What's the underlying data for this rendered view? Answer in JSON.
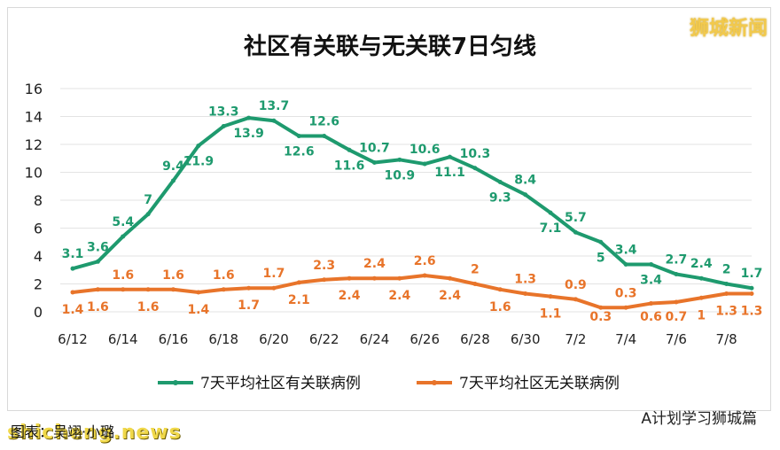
{
  "brand": "狮城新闻",
  "footer_left": "图表：吴翊·小璐",
  "watermark": "shicheng.news",
  "footer_right": "A计划学习狮城篇",
  "colors": {
    "green": "#1e9a6e",
    "orange": "#e8742a"
  },
  "chart_data": {
    "type": "line",
    "title": "社区有关联与无关联7日匀线",
    "xlabel": "",
    "ylabel": "",
    "ylim": [
      0,
      16
    ],
    "yticks": [
      0,
      2,
      4,
      6,
      8,
      10,
      12,
      14,
      16
    ],
    "grid": "horizontal",
    "legend": "bottom",
    "x_ticks": [
      "6/12",
      "6/14",
      "6/16",
      "6/18",
      "6/20",
      "6/22",
      "6/24",
      "6/26",
      "6/28",
      "6/30",
      "7/2",
      "7/4",
      "7/6",
      "7/8"
    ],
    "series": [
      {
        "name": "7天平均社区有关联病例",
        "color": "#1e9a6e",
        "values": [
          3.1,
          3.6,
          5.4,
          7,
          9.4,
          11.9,
          13.3,
          13.9,
          13.7,
          12.6,
          12.6,
          11.6,
          10.7,
          10.9,
          10.6,
          11.1,
          10.3,
          9.3,
          8.4,
          7.1,
          5.7,
          5,
          3.4,
          3.4,
          2.7,
          2.4,
          2,
          1.7
        ]
      },
      {
        "name": "7天平均社区无关联病例",
        "color": "#e8742a",
        "values": [
          1.4,
          1.6,
          1.6,
          1.6,
          1.6,
          1.4,
          1.6,
          1.7,
          1.7,
          2.1,
          2.3,
          2.4,
          2.4,
          2.4,
          2.6,
          2.4,
          2,
          1.6,
          1.3,
          1.1,
          0.9,
          0.3,
          0.3,
          0.6,
          0.7,
          1,
          1.3,
          1.3
        ]
      }
    ]
  }
}
